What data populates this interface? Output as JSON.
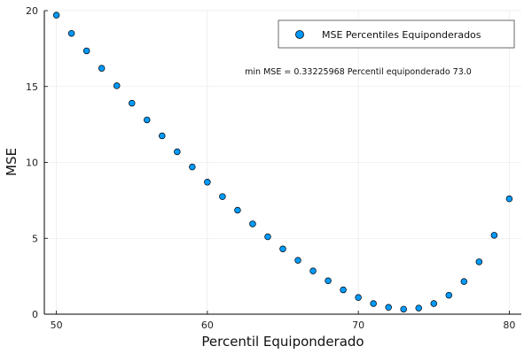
{
  "chart_data": {
    "type": "scatter",
    "xlabel": "Percentil Equiponderado",
    "ylabel": "MSE",
    "xlim": [
      49.2,
      80.8
    ],
    "ylim": [
      0,
      20
    ],
    "xticks": [
      50,
      60,
      70,
      80
    ],
    "yticks": [
      0,
      5,
      10,
      15,
      20
    ],
    "grid": true,
    "legend_position": "top-right",
    "annotation": "min MSE = 0.33225968  Percentil equiponderado 73.0",
    "series": [
      {
        "name": "MSE Percentiles Equiponderados",
        "color": "#009AFA",
        "x": [
          50,
          51,
          52,
          53,
          54,
          55,
          56,
          57,
          58,
          59,
          60,
          61,
          62,
          63,
          64,
          65,
          66,
          67,
          68,
          69,
          70,
          71,
          72,
          73,
          74,
          75,
          76,
          77,
          78,
          79,
          80
        ],
        "y": [
          19.7,
          18.5,
          17.35,
          16.2,
          15.05,
          13.9,
          12.8,
          11.75,
          10.7,
          9.7,
          8.7,
          7.75,
          6.85,
          5.95,
          5.1,
          4.3,
          3.55,
          2.85,
          2.2,
          1.6,
          1.1,
          0.7,
          0.45,
          0.33,
          0.4,
          0.7,
          1.25,
          2.15,
          3.45,
          5.2,
          7.6
        ]
      }
    ]
  }
}
